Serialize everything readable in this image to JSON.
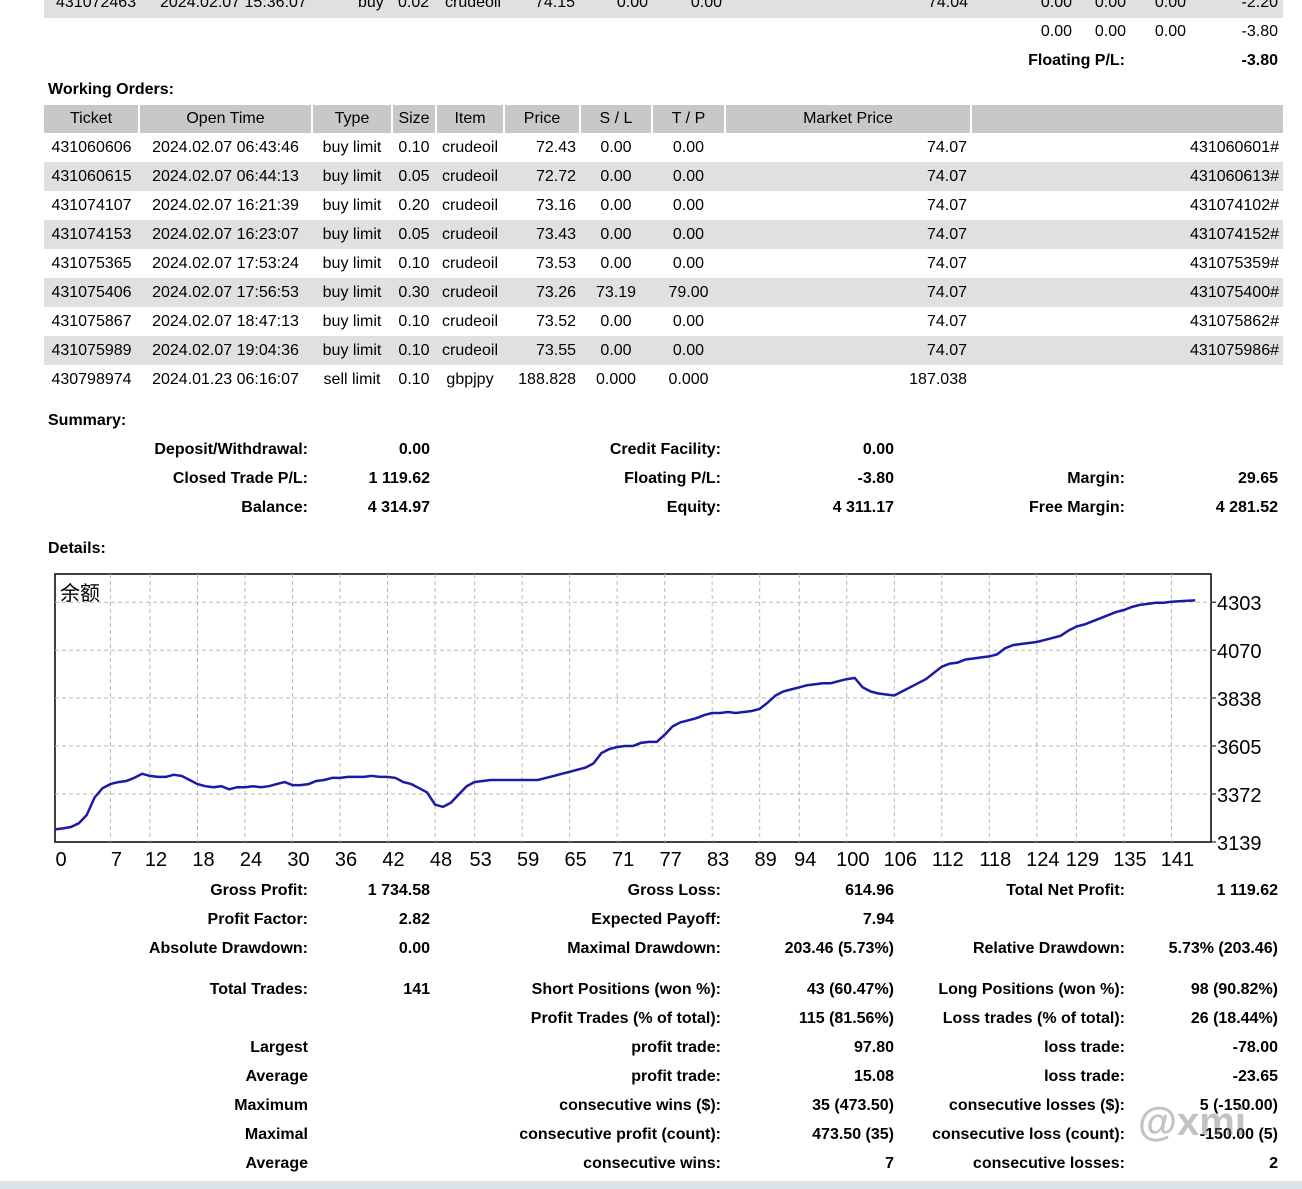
{
  "top_rows": {
    "row1": {
      "ticket": "431072463",
      "time": "2024.02.07 15:36:07",
      "type": "buy",
      "size": "0.02",
      "item": "crudeoil",
      "price": "74.15",
      "sl": "0.00",
      "tp": "0.00",
      "market": "74.04",
      "c1": "0.00",
      "c2": "0.00",
      "c3": "0.00",
      "profit": "-2.20"
    },
    "totals": {
      "c1": "0.00",
      "c2": "0.00",
      "c3": "0.00",
      "profit": "-3.80"
    },
    "floating_label": "Floating P/L:",
    "floating_value": "-3.80"
  },
  "working_orders": {
    "title": "Working Orders:",
    "headers": [
      "Ticket",
      "Open Time",
      "Type",
      "Size",
      "Item",
      "Price",
      "S / L",
      "T / P",
      "Market Price",
      ""
    ],
    "rows": [
      [
        "431060606",
        "2024.02.07 06:43:46",
        "buy limit",
        "0.10",
        "crudeoil",
        "72.43",
        "0.00",
        "0.00",
        "74.07",
        "431060601#"
      ],
      [
        "431060615",
        "2024.02.07 06:44:13",
        "buy limit",
        "0.05",
        "crudeoil",
        "72.72",
        "0.00",
        "0.00",
        "74.07",
        "431060613#"
      ],
      [
        "431074107",
        "2024.02.07 16:21:39",
        "buy limit",
        "0.20",
        "crudeoil",
        "73.16",
        "0.00",
        "0.00",
        "74.07",
        "431074102#"
      ],
      [
        "431074153",
        "2024.02.07 16:23:07",
        "buy limit",
        "0.05",
        "crudeoil",
        "73.43",
        "0.00",
        "0.00",
        "74.07",
        "431074152#"
      ],
      [
        "431075365",
        "2024.02.07 17:53:24",
        "buy limit",
        "0.10",
        "crudeoil",
        "73.53",
        "0.00",
        "0.00",
        "74.07",
        "431075359#"
      ],
      [
        "431075406",
        "2024.02.07 17:56:53",
        "buy limit",
        "0.30",
        "crudeoil",
        "73.26",
        "73.19",
        "79.00",
        "74.07",
        "431075400#"
      ],
      [
        "431075867",
        "2024.02.07 18:47:13",
        "buy limit",
        "0.10",
        "crudeoil",
        "73.52",
        "0.00",
        "0.00",
        "74.07",
        "431075862#"
      ],
      [
        "431075989",
        "2024.02.07 19:04:36",
        "buy limit",
        "0.10",
        "crudeoil",
        "73.55",
        "0.00",
        "0.00",
        "74.07",
        "431075986#"
      ],
      [
        "430798974",
        "2024.01.23 06:16:07",
        "sell limit",
        "0.10",
        "gbpjpy",
        "188.828",
        "0.000",
        "0.000",
        "187.038",
        ""
      ]
    ]
  },
  "summary": {
    "title": "Summary:",
    "deposit_label": "Deposit/Withdrawal:",
    "deposit_value": "0.00",
    "credit_label": "Credit Facility:",
    "credit_value": "0.00",
    "closed_label": "Closed Trade P/L:",
    "closed_value": "1 119.62",
    "floating_label": "Floating P/L:",
    "floating_value": "-3.80",
    "margin_label": "Margin:",
    "margin_value": "29.65",
    "balance_label": "Balance:",
    "balance_value": "4 314.97",
    "equity_label": "Equity:",
    "equity_value": "4 311.17",
    "free_margin_label": "Free Margin:",
    "free_margin_value": "4 281.52"
  },
  "details": {
    "title": "Details:"
  },
  "chart_data": {
    "type": "line",
    "title": "余额",
    "xlabel": "",
    "ylabel": "",
    "x_ticks": [
      0,
      7,
      12,
      18,
      24,
      30,
      36,
      42,
      48,
      53,
      59,
      65,
      71,
      77,
      83,
      89,
      94,
      100,
      106,
      112,
      118,
      124,
      129,
      135,
      141
    ],
    "y_ticks": [
      3139,
      3372,
      3605,
      3838,
      4070,
      4303
    ],
    "xlim": [
      0,
      146
    ],
    "ylim": [
      3139,
      4440
    ],
    "grid": true,
    "series": [
      {
        "x": [
          0,
          1,
          2,
          3,
          4,
          5,
          6,
          7,
          8,
          9,
          10,
          11,
          12,
          13,
          14,
          15,
          16,
          17,
          18,
          19,
          20,
          21,
          22,
          23,
          24,
          25,
          26,
          27,
          28,
          29,
          30,
          31,
          32,
          33,
          34,
          35,
          36,
          37,
          38,
          39,
          40,
          41,
          42,
          43,
          44,
          45,
          46,
          47,
          48,
          49,
          50,
          51,
          52,
          53,
          54,
          55,
          56,
          57,
          58,
          59,
          60,
          61,
          62,
          63,
          64,
          65,
          66,
          67,
          68,
          69,
          70,
          71,
          72,
          73,
          74,
          75,
          76,
          77,
          78,
          79,
          80,
          81,
          82,
          83,
          84,
          85,
          86,
          87,
          88,
          89,
          90,
          91,
          92,
          93,
          94,
          95,
          96,
          97,
          98,
          99,
          100,
          101,
          102,
          103,
          104,
          105,
          106,
          107,
          108,
          109,
          110,
          111,
          112,
          113,
          114,
          115,
          116,
          117,
          118,
          119,
          120,
          121,
          122,
          123,
          124,
          125,
          126,
          127,
          128,
          129,
          130,
          131,
          132,
          133,
          134,
          135,
          136,
          137,
          138,
          139,
          140,
          141,
          142,
          143,
          144
        ],
        "values": [
          3200,
          3205,
          3212,
          3230,
          3270,
          3355,
          3400,
          3420,
          3430,
          3435,
          3450,
          3470,
          3460,
          3455,
          3455,
          3465,
          3460,
          3440,
          3420,
          3410,
          3405,
          3410,
          3395,
          3405,
          3405,
          3410,
          3405,
          3410,
          3420,
          3430,
          3415,
          3415,
          3420,
          3435,
          3440,
          3450,
          3450,
          3455,
          3455,
          3455,
          3460,
          3455,
          3455,
          3450,
          3430,
          3420,
          3400,
          3380,
          3320,
          3310,
          3330,
          3370,
          3410,
          3430,
          3435,
          3440,
          3440,
          3440,
          3440,
          3440,
          3440,
          3440,
          3450,
          3460,
          3470,
          3480,
          3490,
          3500,
          3520,
          3570,
          3590,
          3600,
          3605,
          3605,
          3620,
          3625,
          3625,
          3660,
          3700,
          3720,
          3730,
          3740,
          3755,
          3765,
          3765,
          3770,
          3765,
          3770,
          3775,
          3785,
          3815,
          3850,
          3870,
          3880,
          3890,
          3900,
          3905,
          3910,
          3910,
          3920,
          3930,
          3935,
          3890,
          3870,
          3860,
          3855,
          3850,
          3870,
          3890,
          3910,
          3930,
          3960,
          3990,
          4005,
          4010,
          4025,
          4030,
          4035,
          4040,
          4050,
          4080,
          4095,
          4100,
          4105,
          4110,
          4120,
          4130,
          4140,
          4165,
          4185,
          4195,
          4210,
          4225,
          4240,
          4255,
          4265,
          4280,
          4290,
          4295,
          4300,
          4300,
          4305,
          4308,
          4310,
          4312
        ]
      }
    ]
  },
  "stats": {
    "gross_profit_label": "Gross Profit:",
    "gross_profit": "1 734.58",
    "gross_loss_label": "Gross Loss:",
    "gross_loss": "614.96",
    "total_net_label": "Total Net Profit:",
    "total_net": "1 119.62",
    "profit_factor_label": "Profit Factor:",
    "profit_factor": "2.82",
    "expected_payoff_label": "Expected Payoff:",
    "expected_payoff": "7.94",
    "abs_dd_label": "Absolute Drawdown:",
    "abs_dd": "0.00",
    "max_dd_label": "Maximal Drawdown:",
    "max_dd": "203.46 (5.73%)",
    "rel_dd_label": "Relative Drawdown:",
    "rel_dd": "5.73% (203.46)",
    "total_trades_label": "Total Trades:",
    "total_trades": "141",
    "short_label": "Short Positions (won %):",
    "short": "43 (60.47%)",
    "long_label": "Long Positions (won %):",
    "long": "98 (90.82%)",
    "profit_trades_label": "Profit Trades (% of total):",
    "profit_trades": "115 (81.56%)",
    "loss_trades_label": "Loss trades (% of total):",
    "loss_trades": "26 (18.44%)",
    "largest_label": "Largest",
    "largest_profit_label": "profit trade:",
    "largest_profit": "97.80",
    "largest_loss_label": "loss trade:",
    "largest_loss": "-78.00",
    "average_label": "Average",
    "average_profit_label": "profit trade:",
    "average_profit": "15.08",
    "average_loss_label": "loss trade:",
    "average_loss": "-23.65",
    "maximum_label": "Maximum",
    "max_cons_wins_label": "consecutive wins ($):",
    "max_cons_wins": "35 (473.50)",
    "max_cons_losses_label": "consecutive losses ($):",
    "max_cons_losses": "5 (-150.00)",
    "maximal_label": "Maximal",
    "maximal_cons_profit_label": "consecutive profit (count):",
    "maximal_cons_profit": "473.50 (35)",
    "maximal_cons_loss_label": "consecutive loss (count):",
    "maximal_cons_loss": "-150.00 (5)",
    "average2_label": "Average",
    "avg_cons_wins_label": "consecutive wins:",
    "avg_cons_wins": "7",
    "avg_cons_losses_label": "consecutive losses:",
    "avg_cons_losses": "2"
  },
  "watermark": "@xmi"
}
